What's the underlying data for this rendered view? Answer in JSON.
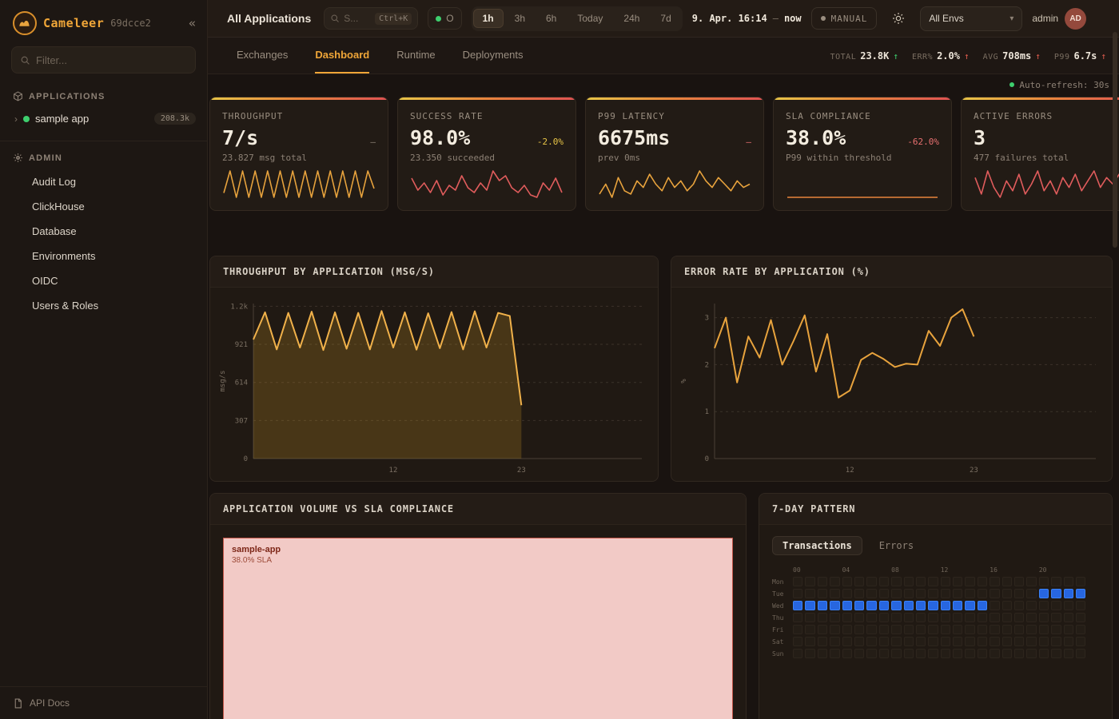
{
  "colors": {
    "accent": "#f0a638",
    "red": "#e05c4e",
    "green": "#3ecf6e",
    "yellow": "#e8c547",
    "blue": "#2766e0",
    "spark_yellow": "#e8a33d",
    "spark_red": "#e05c5c",
    "spark_orange": "#e8843d"
  },
  "sidebar": {
    "brand": "Cameleer",
    "build": "69dcce2",
    "collapse_icon": "«",
    "filter_placeholder": "Filter...",
    "applications_header": "APPLICATIONS",
    "app_item": {
      "name": "sample app",
      "badge": "208.3k"
    },
    "admin_header": "ADMIN",
    "admin_items": [
      "Audit Log",
      "ClickHouse",
      "Database",
      "Environments",
      "OIDC",
      "Users & Roles"
    ],
    "api_docs": "API Docs"
  },
  "topbar": {
    "title": "All Applications",
    "search_placeholder": "S...",
    "search_shortcut": "Ctrl+K",
    "status_pill": "O",
    "time_ranges": [
      "1h",
      "3h",
      "6h",
      "Today",
      "24h",
      "7d"
    ],
    "active_range": "1h",
    "date_from": "9. Apr. 16:14",
    "date_sep": "—",
    "date_to": "now",
    "manual_label": "MANUAL",
    "env_select": "All Envs",
    "env_caret": "▾",
    "user_name": "admin",
    "avatar": "AD"
  },
  "tabs": {
    "items": [
      "Exchanges",
      "Dashboard",
      "Runtime",
      "Deployments"
    ],
    "active": "Dashboard"
  },
  "stats": [
    {
      "label": "TOTAL",
      "value": "23.8K",
      "arrow": "↑",
      "trend_color": "green"
    },
    {
      "label": "ERR%",
      "value": "2.0%",
      "arrow": "↑",
      "trend_color": "red"
    },
    {
      "label": "AVG",
      "value": "708ms",
      "arrow": "↑",
      "trend_color": "red"
    },
    {
      "label": "P99",
      "value": "6.7s",
      "arrow": "↑",
      "trend_color": "red"
    }
  ],
  "auto_refresh": "Auto-refresh: 30s",
  "kpis": [
    {
      "label": "THROUGHPUT",
      "value": "7/s",
      "delta": "–",
      "sub": "23.827 msg total",
      "spark_color": "#e8a33d",
      "spark": [
        4,
        9,
        3,
        9,
        3,
        9,
        3,
        9,
        3,
        9,
        3,
        9,
        3,
        9,
        3,
        9,
        3,
        9,
        3,
        9,
        3,
        9,
        3,
        9,
        5
      ]
    },
    {
      "label": "SUCCESS RATE",
      "value": "98.0%",
      "delta": "-2.0%",
      "sub": "23.350 succeeded",
      "spark_color": "#e05c5c",
      "spark": [
        55,
        30,
        45,
        25,
        50,
        20,
        40,
        30,
        60,
        35,
        25,
        45,
        30,
        70,
        50,
        60,
        35,
        25,
        40,
        20,
        15,
        45,
        30,
        55,
        25
      ]
    },
    {
      "label": "P99 LATENCY",
      "value": "6675ms",
      "delta": "–",
      "sub": "prev 0ms",
      "spark_color": "#e8a33d",
      "spark": [
        30,
        45,
        25,
        55,
        35,
        30,
        50,
        40,
        60,
        45,
        35,
        55,
        40,
        50,
        35,
        45,
        65,
        50,
        40,
        55,
        45,
        35,
        50,
        40,
        45
      ]
    },
    {
      "label": "SLA COMPLIANCE",
      "value": "38.0%",
      "delta": "-62.0%",
      "sub": "P99 within threshold",
      "spark_color": "#e8843d",
      "spark": [
        38,
        38,
        38,
        38,
        38,
        38,
        38,
        38,
        38,
        38,
        38,
        38,
        38,
        38,
        38,
        38,
        38,
        38,
        38,
        38
      ]
    },
    {
      "label": "ACTIVE ERRORS",
      "value": "3",
      "delta": "–",
      "sub": "477 failures total",
      "spark_color": "#e05c5c",
      "spark": [
        50,
        25,
        60,
        35,
        20,
        45,
        30,
        55,
        25,
        40,
        60,
        30,
        45,
        25,
        50,
        35,
        55,
        30,
        45,
        60,
        35,
        50,
        40,
        55,
        45
      ]
    }
  ],
  "charts": {
    "throughput": {
      "type": "area",
      "title": "THROUGHPUT BY APPLICATION (MSG/S)",
      "ylabel": "msg/s",
      "ymax": 1250,
      "yticks": [
        {
          "v": 0,
          "label": "0"
        },
        {
          "v": 307,
          "label": "307"
        },
        {
          "v": 614,
          "label": "614"
        },
        {
          "v": 921,
          "label": "921"
        },
        {
          "v": 1228,
          "label": "1.2k"
        }
      ],
      "xticks": [
        {
          "i": 12,
          "label": "12"
        },
        {
          "i": 23,
          "label": "23"
        }
      ],
      "frac": 0.69,
      "color": "#f0b14a",
      "fill": "rgba(216,160,40,0.22)",
      "values": [
        960,
        1180,
        880,
        1175,
        895,
        1185,
        875,
        1180,
        885,
        1175,
        880,
        1190,
        895,
        1180,
        878,
        1172,
        890,
        1182,
        880,
        1188,
        895,
        1175,
        1150,
        430
      ]
    },
    "error_rate": {
      "type": "line",
      "title": "ERROR RATE BY APPLICATION (%)",
      "ylabel": "%",
      "ymax": 3.3,
      "yticks": [
        {
          "v": 0,
          "label": "0"
        },
        {
          "v": 1,
          "label": "1"
        },
        {
          "v": 2,
          "label": "2"
        },
        {
          "v": 3,
          "label": "3"
        }
      ],
      "xticks": [
        {
          "i": 12,
          "label": "12"
        },
        {
          "i": 23,
          "label": "23"
        }
      ],
      "frac": 0.68,
      "color": "#e8a33d",
      "fill": null,
      "values": [
        2.35,
        3.0,
        1.62,
        2.6,
        2.15,
        2.95,
        2.0,
        2.5,
        3.05,
        1.85,
        2.65,
        1.3,
        1.45,
        2.1,
        2.25,
        2.12,
        1.95,
        2.02,
        2.0,
        2.72,
        2.4,
        3.0,
        3.18,
        2.6
      ]
    }
  },
  "treemap": {
    "title": "APPLICATION VOLUME VS SLA COMPLIANCE",
    "cell_name": "sample-app",
    "cell_sla": "38.0% SLA"
  },
  "pattern": {
    "title": "7-DAY PATTERN",
    "tabs": [
      "Transactions",
      "Errors"
    ],
    "active_tab": "Transactions",
    "hour_labels": [
      "00",
      "04",
      "08",
      "12",
      "16",
      "20"
    ],
    "day_labels": [
      "Mon",
      "Tue",
      "Wed",
      "Thu",
      "Fri",
      "Sat",
      "Sun"
    ],
    "matrix": [
      "000000000000000000000000",
      "000000000000000000001111",
      "111111111111111100000000",
      "000000000000000000000000",
      "000000000000000000000000",
      "000000000000000000000000",
      "000000000000000000000000"
    ]
  }
}
